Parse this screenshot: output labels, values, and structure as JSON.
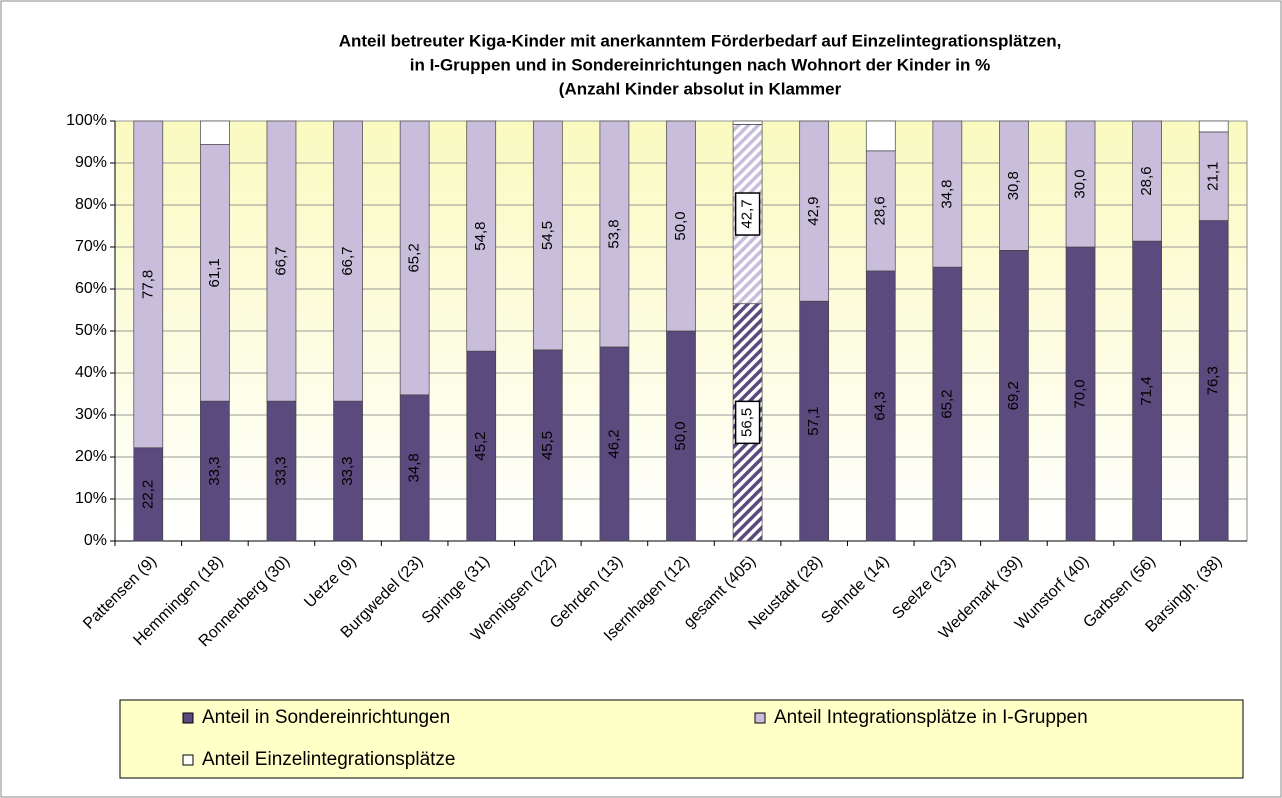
{
  "chart_data": {
    "type": "stacked_bar_100",
    "title": [
      "Anteil betreuter Kiga-Kinder mit anerkanntem Förderbedarf auf Einzelintegrationsplätzen,",
      "in I-Gruppen und in Sondereinrichtungen nach Wohnort der Kinder in %",
      "(Anzahl Kinder absolut in Klammer"
    ],
    "categories": [
      "Pattensen (9)",
      "Hemmingen (18)",
      "Ronnenberg (30)",
      "Uetze (9)",
      "Burgwedel (23)",
      "Springe (31)",
      "Wennigsen (22)",
      "Gehrden (13)",
      "Isernhagen (12)",
      "gesamt (405)",
      "Neustadt (28)",
      "Sehnde (14)",
      "Seelze (23)",
      "Wedemark (39)",
      "Wunstorf (40)",
      "Garbsen (56)",
      "Barsingh. (38)"
    ],
    "highlight": "gesamt (405)",
    "series": [
      {
        "name": "Anteil in Sondereinrichtungen",
        "color": "#5b4a7e",
        "values": [
          22.2,
          33.3,
          33.3,
          33.3,
          34.8,
          45.2,
          45.5,
          46.2,
          50.0,
          56.5,
          57.1,
          64.3,
          65.2,
          69.2,
          70.0,
          71.4,
          76.3
        ],
        "value_labels": [
          "22,2",
          "33,3",
          "33,3",
          "33,3",
          "34,8",
          "45,2",
          "45,5",
          "46,2",
          "50,0",
          "56,5",
          "57,1",
          "64,3",
          "65,2",
          "69,2",
          "70,0",
          "71,4",
          "76,3"
        ]
      },
      {
        "name": "Anteil Integrationsplätze in I-Gruppen",
        "color": "#c8bedc",
        "values": [
          77.8,
          61.1,
          66.7,
          66.7,
          65.2,
          54.8,
          54.5,
          53.8,
          50.0,
          42.7,
          42.9,
          28.6,
          34.8,
          30.8,
          30.0,
          28.6,
          21.1
        ],
        "value_labels": [
          "77,8",
          "61,1",
          "66,7",
          "66,7",
          "65,2",
          "54,8",
          "54,5",
          "53,8",
          "50,0",
          "42,7",
          "42,9",
          "28,6",
          "34,8",
          "30,8",
          "30,0",
          "28,6",
          "21,1"
        ]
      },
      {
        "name": "Anteil Einzelintegrationsplätze",
        "color": "#ffffff",
        "values": [
          0,
          5.6,
          0,
          0,
          0,
          0,
          0,
          0,
          0,
          0.8,
          0,
          7.1,
          0,
          0,
          0,
          0,
          2.6
        ]
      }
    ],
    "ylim": [
      0,
      100
    ],
    "yticks": [
      {
        "value": 0,
        "label": "0%"
      },
      {
        "value": 10,
        "label": "10%"
      },
      {
        "value": 20,
        "label": "20%"
      },
      {
        "value": 30,
        "label": "30%"
      },
      {
        "value": 40,
        "label": "40%"
      },
      {
        "value": 50,
        "label": "50%"
      },
      {
        "value": 60,
        "label": "60%"
      },
      {
        "value": 70,
        "label": "70%"
      },
      {
        "value": 80,
        "label": "80%"
      },
      {
        "value": 90,
        "label": "90%"
      },
      {
        "value": 100,
        "label": "100%"
      }
    ],
    "grid": true,
    "legend": "bottom"
  }
}
